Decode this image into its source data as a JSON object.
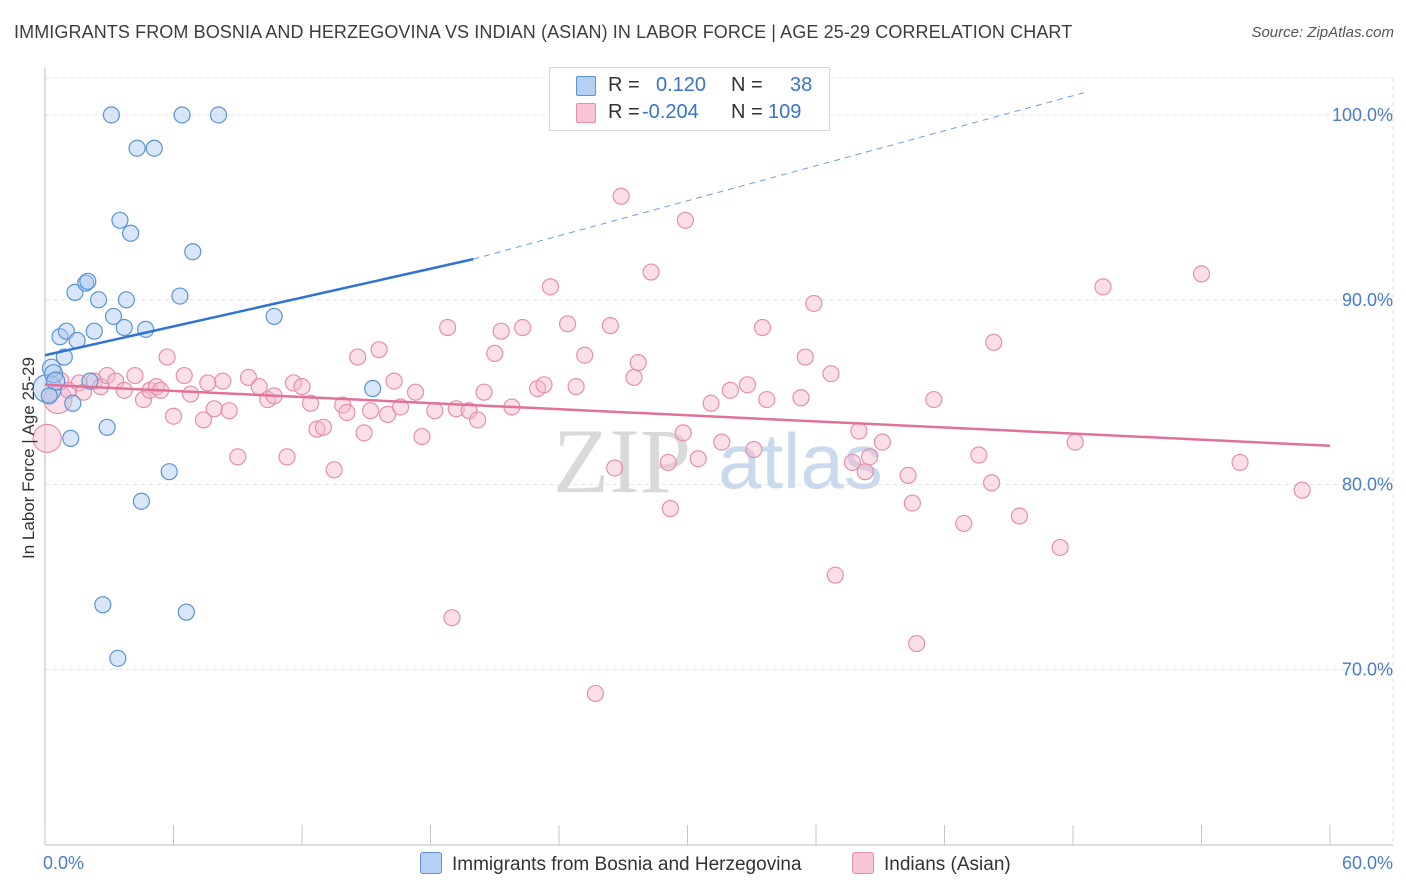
{
  "title": "IMMIGRANTS FROM BOSNIA AND HERZEGOVINA VS INDIAN (ASIAN) IN LABOR FORCE | AGE 25-29 CORRELATION CHART",
  "source": "Source: ZipAtlas.com",
  "watermark": {
    "zip": "ZIP",
    "atlas": "atlas"
  },
  "legend": {
    "series1": {
      "r_label": "R =",
      "r_value": "0.120",
      "n_label": "N =",
      "n_value": "38"
    },
    "series2": {
      "r_label": "R =",
      "r_value": "-0.204",
      "n_label": "N =",
      "n_value": "109"
    }
  },
  "colors": {
    "blue_fill": "#a9c8f0",
    "blue_stroke": "#5b93d6",
    "blue_line": "#2f74d0",
    "pink_fill": "#f7b9cc",
    "pink_stroke": "#e590ab",
    "pink_line": "#e0719a",
    "tick_text": "#4a7cc7",
    "grid": "#e3e3e3"
  },
  "chart_data": {
    "type": "scatter",
    "title": "IMMIGRANTS FROM BOSNIA AND HERZEGOVINA VS INDIAN (ASIAN) IN LABOR FORCE | AGE 25-29 CORRELATION CHART",
    "xlabel": "",
    "ylabel": "In Labor Force | Age 25-29",
    "xlim": [
      0,
      60
    ],
    "ylim": [
      60.5,
      102
    ],
    "x_tick_labels": [
      "0.0%",
      "60.0%"
    ],
    "y_ticks": [
      70,
      80,
      90,
      100
    ],
    "y_tick_labels": [
      "70.0%",
      "80.0%",
      "90.0%",
      "100.0%"
    ],
    "grid": true,
    "legend_position": "top-center",
    "series": [
      {
        "name": "Immigrants from Bosnia and Herzegovina",
        "color": "blue",
        "r": 0.12,
        "n": 38,
        "trend": {
          "x": [
            0,
            20
          ],
          "y": [
            87.0,
            92.2
          ],
          "dashed_to": {
            "x": [
              20,
              48.5
            ],
            "y": [
              92.2,
              101.2
            ]
          }
        },
        "points": [
          {
            "x": 0.1,
            "y": 85.2,
            "s": 14
          },
          {
            "x": 0.3,
            "y": 86.3,
            "s": 9
          },
          {
            "x": 0.4,
            "y": 86.0,
            "s": 9
          },
          {
            "x": 0.5,
            "y": 85.6,
            "s": 9
          },
          {
            "x": 0.7,
            "y": 88.0,
            "s": 8
          },
          {
            "x": 0.9,
            "y": 86.9,
            "s": 8
          },
          {
            "x": 1.0,
            "y": 88.3,
            "s": 8
          },
          {
            "x": 1.2,
            "y": 82.5,
            "s": 8
          },
          {
            "x": 1.3,
            "y": 84.4,
            "s": 8
          },
          {
            "x": 1.4,
            "y": 90.4,
            "s": 8
          },
          {
            "x": 1.5,
            "y": 87.8,
            "s": 8
          },
          {
            "x": 1.9,
            "y": 90.9,
            "s": 8
          },
          {
            "x": 2.0,
            "y": 91.0,
            "s": 8
          },
          {
            "x": 2.1,
            "y": 85.6,
            "s": 8
          },
          {
            "x": 2.3,
            "y": 88.3,
            "s": 8
          },
          {
            "x": 2.5,
            "y": 90.0,
            "s": 8
          },
          {
            "x": 2.7,
            "y": 73.5,
            "s": 8
          },
          {
            "x": 2.9,
            "y": 83.1,
            "s": 8
          },
          {
            "x": 3.1,
            "y": 100.0,
            "s": 8
          },
          {
            "x": 3.2,
            "y": 89.1,
            "s": 8
          },
          {
            "x": 3.4,
            "y": 70.6,
            "s": 8
          },
          {
            "x": 3.5,
            "y": 94.3,
            "s": 8
          },
          {
            "x": 3.7,
            "y": 88.5,
            "s": 8
          },
          {
            "x": 3.8,
            "y": 90.0,
            "s": 8
          },
          {
            "x": 4.0,
            "y": 93.6,
            "s": 8
          },
          {
            "x": 4.3,
            "y": 98.2,
            "s": 8
          },
          {
            "x": 4.5,
            "y": 79.1,
            "s": 8
          },
          {
            "x": 4.7,
            "y": 88.4,
            "s": 8
          },
          {
            "x": 5.1,
            "y": 98.2,
            "s": 8
          },
          {
            "x": 5.8,
            "y": 80.7,
            "s": 8
          },
          {
            "x": 6.3,
            "y": 90.2,
            "s": 8
          },
          {
            "x": 6.4,
            "y": 100.0,
            "s": 8
          },
          {
            "x": 6.6,
            "y": 73.1,
            "s": 8
          },
          {
            "x": 6.9,
            "y": 92.6,
            "s": 8
          },
          {
            "x": 8.1,
            "y": 100.0,
            "s": 8
          },
          {
            "x": 10.7,
            "y": 89.1,
            "s": 8
          },
          {
            "x": 15.3,
            "y": 85.2,
            "s": 8
          },
          {
            "x": 0.2,
            "y": 84.8,
            "s": 8
          }
        ]
      },
      {
        "name": "Indians (Asian)",
        "color": "pink",
        "r": -0.204,
        "n": 109,
        "trend": {
          "x": [
            0,
            60
          ],
          "y": [
            85.4,
            82.1
          ]
        },
        "points": [
          {
            "x": 0.1,
            "y": 82.5,
            "s": 14
          },
          {
            "x": 0.6,
            "y": 84.6,
            "s": 14
          },
          {
            "x": 0.7,
            "y": 85.6,
            "s": 9
          },
          {
            "x": 1.1,
            "y": 85.1,
            "s": 8
          },
          {
            "x": 1.6,
            "y": 85.5,
            "s": 8
          },
          {
            "x": 1.8,
            "y": 85.0,
            "s": 8
          },
          {
            "x": 2.3,
            "y": 85.6,
            "s": 8
          },
          {
            "x": 2.6,
            "y": 85.3,
            "s": 8
          },
          {
            "x": 2.9,
            "y": 85.9,
            "s": 8
          },
          {
            "x": 3.3,
            "y": 85.6,
            "s": 8
          },
          {
            "x": 3.7,
            "y": 85.1,
            "s": 8
          },
          {
            "x": 4.2,
            "y": 85.9,
            "s": 8
          },
          {
            "x": 4.6,
            "y": 84.6,
            "s": 8
          },
          {
            "x": 4.9,
            "y": 85.1,
            "s": 8
          },
          {
            "x": 5.2,
            "y": 85.3,
            "s": 8
          },
          {
            "x": 5.7,
            "y": 86.9,
            "s": 8
          },
          {
            "x": 6.0,
            "y": 83.7,
            "s": 8
          },
          {
            "x": 6.5,
            "y": 85.9,
            "s": 8
          },
          {
            "x": 6.8,
            "y": 84.9,
            "s": 8
          },
          {
            "x": 7.4,
            "y": 83.5,
            "s": 8
          },
          {
            "x": 7.6,
            "y": 85.5,
            "s": 8
          },
          {
            "x": 7.9,
            "y": 84.1,
            "s": 8
          },
          {
            "x": 8.3,
            "y": 85.6,
            "s": 8
          },
          {
            "x": 8.6,
            "y": 84.0,
            "s": 8
          },
          {
            "x": 9.0,
            "y": 81.5,
            "s": 8
          },
          {
            "x": 9.5,
            "y": 85.8,
            "s": 8
          },
          {
            "x": 10.0,
            "y": 85.3,
            "s": 8
          },
          {
            "x": 10.4,
            "y": 84.6,
            "s": 8
          },
          {
            "x": 10.7,
            "y": 84.8,
            "s": 8
          },
          {
            "x": 11.3,
            "y": 81.5,
            "s": 8
          },
          {
            "x": 11.6,
            "y": 85.5,
            "s": 8
          },
          {
            "x": 12.0,
            "y": 85.3,
            "s": 8
          },
          {
            "x": 12.4,
            "y": 84.4,
            "s": 8
          },
          {
            "x": 12.7,
            "y": 83.0,
            "s": 8
          },
          {
            "x": 13.0,
            "y": 83.1,
            "s": 8
          },
          {
            "x": 13.5,
            "y": 80.8,
            "s": 8
          },
          {
            "x": 13.9,
            "y": 84.3,
            "s": 8
          },
          {
            "x": 14.1,
            "y": 83.9,
            "s": 8
          },
          {
            "x": 14.6,
            "y": 86.9,
            "s": 8
          },
          {
            "x": 14.9,
            "y": 82.8,
            "s": 8
          },
          {
            "x": 15.2,
            "y": 84.0,
            "s": 8
          },
          {
            "x": 15.6,
            "y": 87.3,
            "s": 8
          },
          {
            "x": 16.0,
            "y": 83.8,
            "s": 8
          },
          {
            "x": 16.3,
            "y": 85.6,
            "s": 8
          },
          {
            "x": 16.6,
            "y": 84.2,
            "s": 8
          },
          {
            "x": 17.3,
            "y": 85.0,
            "s": 8
          },
          {
            "x": 17.6,
            "y": 82.6,
            "s": 8
          },
          {
            "x": 18.2,
            "y": 84.0,
            "s": 8
          },
          {
            "x": 18.8,
            "y": 88.5,
            "s": 8
          },
          {
            "x": 19.0,
            "y": 72.8,
            "s": 8
          },
          {
            "x": 19.2,
            "y": 84.1,
            "s": 8
          },
          {
            "x": 19.8,
            "y": 84.0,
            "s": 8
          },
          {
            "x": 20.2,
            "y": 83.5,
            "s": 8
          },
          {
            "x": 20.5,
            "y": 85.0,
            "s": 8
          },
          {
            "x": 21.0,
            "y": 87.1,
            "s": 8
          },
          {
            "x": 21.3,
            "y": 88.3,
            "s": 8
          },
          {
            "x": 21.8,
            "y": 84.2,
            "s": 8
          },
          {
            "x": 22.3,
            "y": 88.5,
            "s": 8
          },
          {
            "x": 23.0,
            "y": 85.2,
            "s": 8
          },
          {
            "x": 23.3,
            "y": 85.4,
            "s": 8
          },
          {
            "x": 23.6,
            "y": 90.7,
            "s": 8
          },
          {
            "x": 24.4,
            "y": 88.7,
            "s": 8
          },
          {
            "x": 24.8,
            "y": 85.3,
            "s": 8
          },
          {
            "x": 25.2,
            "y": 87.0,
            "s": 8
          },
          {
            "x": 25.7,
            "y": 68.7,
            "s": 8
          },
          {
            "x": 26.4,
            "y": 88.6,
            "s": 8
          },
          {
            "x": 26.6,
            "y": 80.9,
            "s": 8
          },
          {
            "x": 26.9,
            "y": 95.6,
            "s": 8
          },
          {
            "x": 27.5,
            "y": 85.8,
            "s": 8
          },
          {
            "x": 27.7,
            "y": 86.6,
            "s": 8
          },
          {
            "x": 28.3,
            "y": 91.5,
            "s": 8
          },
          {
            "x": 29.1,
            "y": 81.2,
            "s": 8
          },
          {
            "x": 29.2,
            "y": 78.7,
            "s": 8
          },
          {
            "x": 29.8,
            "y": 82.8,
            "s": 8
          },
          {
            "x": 29.9,
            "y": 94.3,
            "s": 8
          },
          {
            "x": 30.5,
            "y": 81.4,
            "s": 8
          },
          {
            "x": 31.1,
            "y": 84.4,
            "s": 8
          },
          {
            "x": 31.6,
            "y": 82.3,
            "s": 8
          },
          {
            "x": 32.0,
            "y": 85.1,
            "s": 8
          },
          {
            "x": 32.8,
            "y": 85.4,
            "s": 8
          },
          {
            "x": 33.1,
            "y": 81.9,
            "s": 8
          },
          {
            "x": 33.5,
            "y": 88.5,
            "s": 8
          },
          {
            "x": 33.7,
            "y": 84.6,
            "s": 8
          },
          {
            "x": 35.3,
            "y": 84.7,
            "s": 8
          },
          {
            "x": 35.5,
            "y": 86.9,
            "s": 8
          },
          {
            "x": 35.9,
            "y": 89.8,
            "s": 8
          },
          {
            "x": 36.7,
            "y": 86.0,
            "s": 8
          },
          {
            "x": 36.9,
            "y": 75.1,
            "s": 8
          },
          {
            "x": 37.7,
            "y": 81.2,
            "s": 8
          },
          {
            "x": 38.0,
            "y": 82.9,
            "s": 8
          },
          {
            "x": 38.3,
            "y": 80.7,
            "s": 8
          },
          {
            "x": 38.5,
            "y": 81.5,
            "s": 8
          },
          {
            "x": 39.1,
            "y": 82.3,
            "s": 8
          },
          {
            "x": 40.3,
            "y": 80.5,
            "s": 8
          },
          {
            "x": 40.5,
            "y": 79.0,
            "s": 8
          },
          {
            "x": 40.7,
            "y": 71.4,
            "s": 8
          },
          {
            "x": 41.5,
            "y": 84.6,
            "s": 8
          },
          {
            "x": 42.9,
            "y": 77.9,
            "s": 8
          },
          {
            "x": 43.6,
            "y": 81.6,
            "s": 8
          },
          {
            "x": 44.2,
            "y": 80.1,
            "s": 8
          },
          {
            "x": 44.3,
            "y": 87.7,
            "s": 8
          },
          {
            "x": 45.5,
            "y": 78.3,
            "s": 8
          },
          {
            "x": 47.4,
            "y": 76.6,
            "s": 8
          },
          {
            "x": 48.1,
            "y": 82.3,
            "s": 8
          },
          {
            "x": 49.4,
            "y": 90.7,
            "s": 8
          },
          {
            "x": 54.0,
            "y": 91.4,
            "s": 8
          },
          {
            "x": 55.8,
            "y": 81.2,
            "s": 8
          },
          {
            "x": 58.7,
            "y": 79.7,
            "s": 8
          },
          {
            "x": 5.4,
            "y": 85.1,
            "s": 8
          }
        ]
      }
    ]
  }
}
